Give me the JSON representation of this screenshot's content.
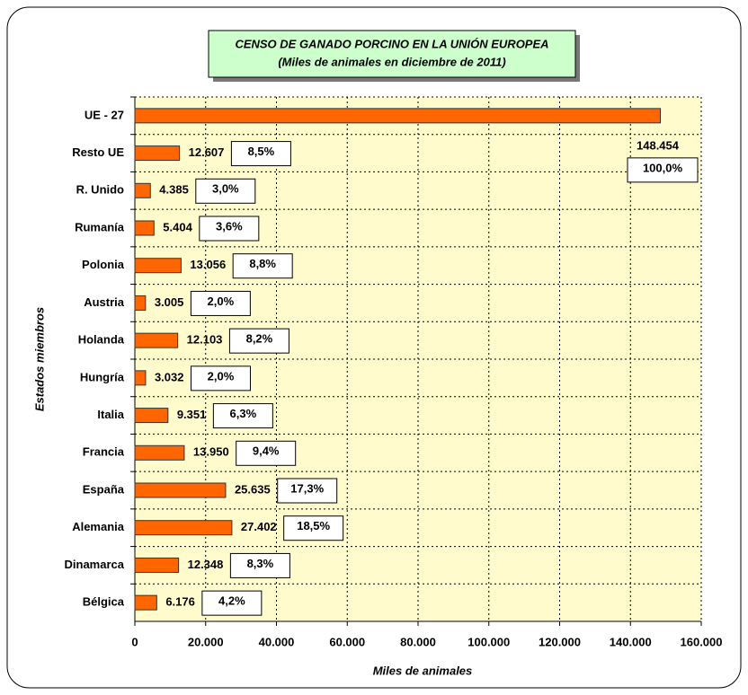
{
  "chart_data": {
    "type": "bar",
    "orientation": "horizontal",
    "title": "CENSO DE GANADO PORCINO EN LA UNIÓN EUROPEA",
    "subtitle": "(Miles de animales en diciembre de 2011)",
    "x_label": "Miles de animales",
    "y_label": "Estados miembros",
    "categories": [
      "UE - 27",
      "Resto UE",
      "R. Unido",
      "Rumanía",
      "Polonia",
      "Austria",
      "Holanda",
      "Hungría",
      "Italia",
      "Francia",
      "España",
      "Alemania",
      "Dinamarca",
      "Bélgica"
    ],
    "values": [
      148454,
      12607,
      4385,
      5404,
      13056,
      3005,
      12103,
      3032,
      9351,
      13950,
      25635,
      27402,
      12348,
      6176
    ],
    "value_labels": [
      "148.454",
      "12.607",
      "4.385",
      "5.404",
      "13.056",
      "3.005",
      "12.103",
      "3.032",
      "9.351",
      "13.950",
      "25.635",
      "27.402",
      "12.348",
      "6.176"
    ],
    "percents": [
      100,
      8.5,
      3.0,
      3.6,
      8.8,
      2.0,
      8.2,
      2.0,
      6.3,
      9.4,
      17.3,
      18.5,
      8.3,
      4.2
    ],
    "percent_labels": [
      "100,0%",
      "8,5%",
      "3,0%",
      "3,6%",
      "8,8%",
      "2,0%",
      "8,2%",
      "2,0%",
      "6,3%",
      "9,4%",
      "17,3%",
      "18,5%",
      "8,3%",
      "4,2%"
    ],
    "color": "#ff6600",
    "xlim": [
      0,
      160000
    ],
    "xticks": [
      0,
      {
        "value": 20000,
        "label": "20.000"
      },
      {
        "value": 40000,
        "label": "40.000"
      },
      {
        "value": 60000,
        "label": "60.000"
      },
      {
        "value": 80000,
        "label": "80.000"
      },
      {
        "value": 100000,
        "label": "100.000"
      },
      {
        "value": 120000,
        "label": "120.000"
      },
      {
        "value": 140000,
        "label": "140.000"
      },
      {
        "value": 160000,
        "label": "160.000"
      }
    ],
    "grid": true
  }
}
